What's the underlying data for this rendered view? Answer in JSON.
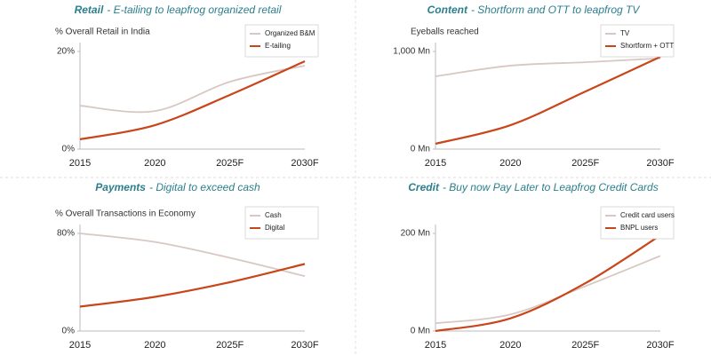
{
  "chart_data": [
    {
      "type": "line",
      "title_lead": "Retail",
      "title": "- E-tailing to leapfrog organized retail",
      "subtitle": "% Overall Retail in India",
      "categories": [
        "2015",
        "2020",
        "2025F",
        "2030F"
      ],
      "series": [
        {
          "name": "Organized B&M",
          "color": "#d8c8c2",
          "values": [
            8.9,
            7.8,
            13.8,
            17.1
          ]
        },
        {
          "name": "E-tailing",
          "color": "#c9451a",
          "values": [
            2,
            4.9,
            11.1,
            18
          ]
        }
      ],
      "ylim": [
        0,
        20
      ],
      "yticks": [
        {
          "value": 0,
          "label": "0%"
        },
        {
          "value": 20,
          "label": "20%"
        }
      ],
      "legend": "top-right",
      "grid": false
    },
    {
      "type": "line",
      "title_lead": "Content",
      "title": "- Shortform and OTT to leapfrog TV",
      "subtitle": "Eyeballs reached",
      "categories": [
        "2015",
        "2020",
        "2025F",
        "2030F"
      ],
      "series": [
        {
          "name": "TV",
          "color": "#d8c8c2",
          "values": [
            745,
            855,
            890,
            930
          ]
        },
        {
          "name": "Shortform + OTT",
          "color": "#c9451a",
          "values": [
            55,
            245,
            590,
            945
          ]
        }
      ],
      "ylim": [
        0,
        1000
      ],
      "yticks": [
        {
          "value": 0,
          "label": "0 Mn"
        },
        {
          "value": 1000,
          "label": "1,000 Mn"
        }
      ],
      "legend": "top-right",
      "grid": false
    },
    {
      "type": "line",
      "title_lead": "Payments",
      "title": "- Digital to exceed cash",
      "subtitle": "% Overall Transactions in Economy",
      "categories": [
        "2015",
        "2020",
        "2025F",
        "2030F"
      ],
      "series": [
        {
          "name": "Cash",
          "color": "#d8c8c2",
          "values": [
            80,
            73,
            60,
            45
          ]
        },
        {
          "name": "Digital",
          "color": "#c9451a",
          "values": [
            20,
            28,
            40,
            55
          ]
        }
      ],
      "ylim": [
        0,
        80
      ],
      "yticks": [
        {
          "value": 0,
          "label": "0%"
        },
        {
          "value": 80,
          "label": "80%"
        }
      ],
      "legend": "top-right",
      "grid": false
    },
    {
      "type": "line",
      "title_lead": "Credit",
      "title": "- Buy now Pay Later to Leapfrog Credit Cards",
      "categories": [
        "2015",
        "2020",
        "2025F",
        "2030F"
      ],
      "series": [
        {
          "name": "Credit card users",
          "color": "#d8c8c2",
          "values": [
            16,
            34,
            92,
            154
          ]
        },
        {
          "name": "BNPL users",
          "color": "#c9451a",
          "values": [
            0,
            26,
            98,
            196
          ]
        }
      ],
      "ylim": [
        0,
        200
      ],
      "yticks": [
        {
          "value": 0,
          "label": "0 Mn"
        },
        {
          "value": 200,
          "label": "200 Mn"
        }
      ],
      "legend": "top-right",
      "grid": false
    }
  ]
}
